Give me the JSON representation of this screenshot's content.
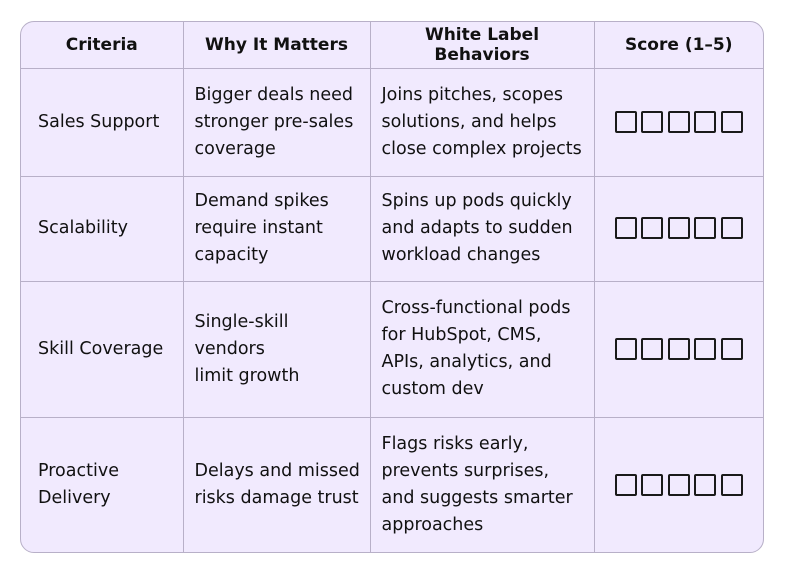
{
  "table": {
    "headers": [
      "Criteria",
      "Why It Matters",
      "White Label Behaviors",
      "Score (1–5)"
    ],
    "rows": [
      {
        "criteria": [
          "Sales Support"
        ],
        "why": [
          "Bigger deals need",
          "stronger pre-sales",
          "coverage"
        ],
        "behaviors": [
          "Joins pitches, scopes",
          "solutions, and helps",
          "close complex projects"
        ]
      },
      {
        "criteria": [
          "Scalability"
        ],
        "why": [
          "Demand spikes",
          "require instant",
          "capacity"
        ],
        "behaviors": [
          "Spins up pods quickly",
          "and adapts to sudden",
          "workload changes"
        ]
      },
      {
        "criteria": [
          "Skill Coverage"
        ],
        "why": [
          "Single-skill vendors",
          "limit growth"
        ],
        "behaviors": [
          "Cross-functional pods",
          "for HubSpot, CMS,",
          "APIs, analytics, and",
          "custom dev"
        ]
      },
      {
        "criteria": [
          "Proactive",
          "Delivery"
        ],
        "why": [
          "Delays and missed",
          "risks damage trust"
        ],
        "behaviors": [
          "Flags risks early,",
          "prevents surprises,",
          "and suggests smarter",
          "approaches"
        ]
      }
    ]
  },
  "colors": {
    "background": "#f1eafe",
    "border": "#b8b0c8",
    "text": "#111111"
  }
}
